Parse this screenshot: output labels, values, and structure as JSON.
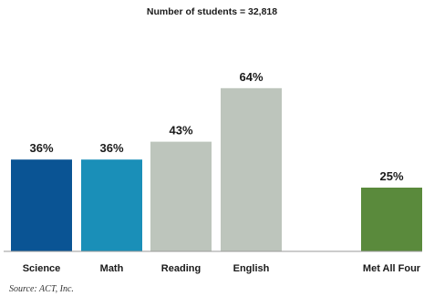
{
  "chart_data": {
    "type": "bar",
    "title": "Number of students = 32,818",
    "categories": [
      "Science",
      "Math",
      "Reading",
      "English",
      "Met All Four"
    ],
    "values": [
      36,
      36,
      43,
      64,
      25
    ],
    "value_labels": [
      "36%",
      "36%",
      "43%",
      "64%",
      "25%"
    ],
    "colors": [
      "#0a5494",
      "#1a8fb8",
      "#bdc5bc",
      "#bdc5bc",
      "#5a8a3c"
    ],
    "xlabel": "",
    "ylabel": "",
    "ylim": [
      0,
      100
    ],
    "grid": false,
    "legend": "none"
  },
  "source": "Source: ACT, Inc."
}
